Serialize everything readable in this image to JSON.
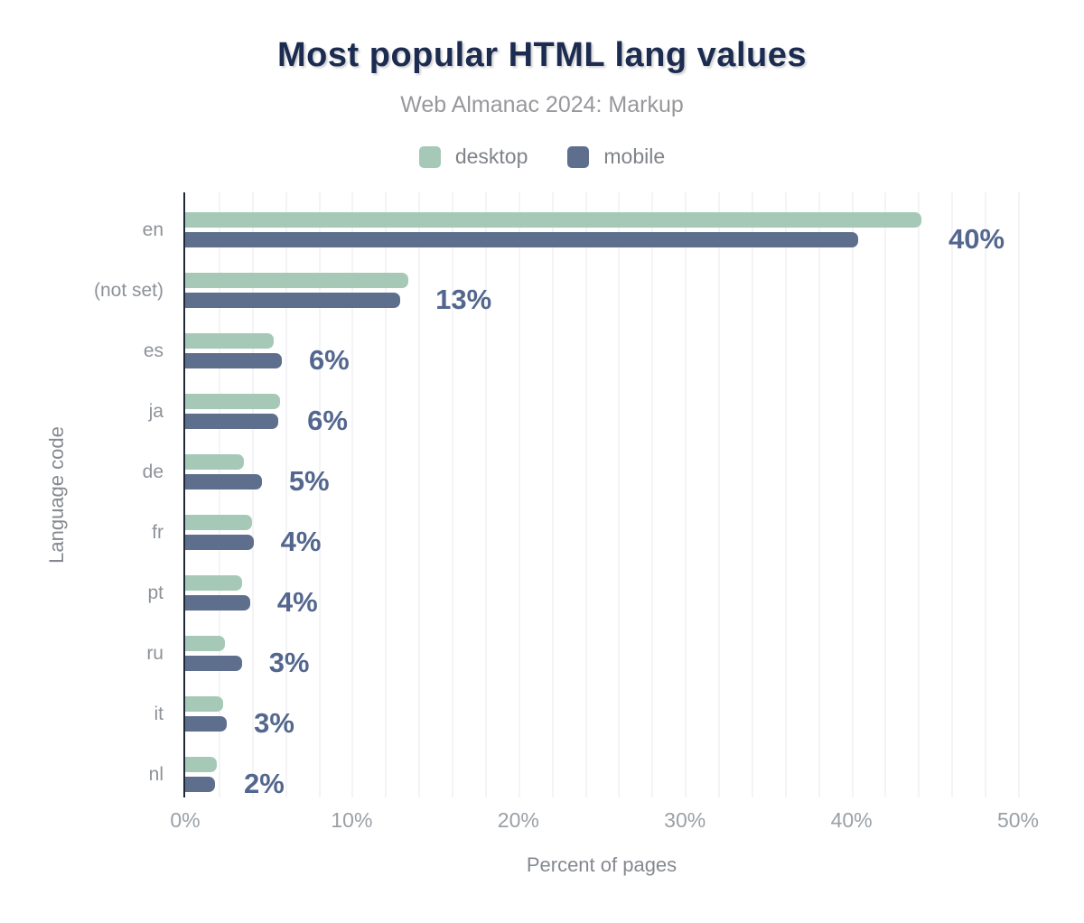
{
  "header": {
    "title": "Most popular HTML lang values",
    "subtitle": "Web Almanac 2024: Markup"
  },
  "legend": {
    "items": [
      {
        "label": "desktop",
        "color": "#a6c9b7"
      },
      {
        "label": "mobile",
        "color": "#5e6f8d"
      }
    ]
  },
  "axes": {
    "xlabel": "Percent of pages",
    "ylabel": "Language code"
  },
  "chart_data": {
    "type": "bar",
    "orientation": "horizontal",
    "title": "Most popular HTML lang values",
    "subtitle": "Web Almanac 2024: Markup",
    "categories": [
      "en",
      "(not set)",
      "es",
      "ja",
      "de",
      "fr",
      "pt",
      "ru",
      "it",
      "nl"
    ],
    "series": [
      {
        "name": "desktop",
        "color": "#a6c9b7",
        "values": [
          44.2,
          13.4,
          5.3,
          5.7,
          3.5,
          4.0,
          3.4,
          2.4,
          2.3,
          1.9
        ]
      },
      {
        "name": "mobile",
        "color": "#5e6f8d",
        "values": [
          40.4,
          12.9,
          5.8,
          5.6,
          4.6,
          4.1,
          3.9,
          3.4,
          2.5,
          1.8
        ]
      }
    ],
    "value_labels": [
      "40%",
      "13%",
      "6%",
      "6%",
      "5%",
      "4%",
      "4%",
      "3%",
      "3%",
      "2%"
    ],
    "xlabel": "Percent of pages",
    "ylabel": "Language code",
    "xlim": [
      0,
      50
    ],
    "x_ticks": [
      {
        "value": 0,
        "label": "0%"
      },
      {
        "value": 10,
        "label": "10%"
      },
      {
        "value": 20,
        "label": "20%"
      },
      {
        "value": 30,
        "label": "30%"
      },
      {
        "value": 40,
        "label": "40%"
      },
      {
        "value": 50,
        "label": "50%"
      }
    ],
    "grid": {
      "show": true,
      "every_pct": 2,
      "color": "#f4f4f6"
    },
    "legend_position": "top",
    "colors": {
      "title": "#1c2b50",
      "subtitle": "#98989c",
      "value_label": "#53678e",
      "category_label": "#8d9298",
      "tick_label": "#9aa0a6",
      "axis_line": "#20293a"
    }
  }
}
